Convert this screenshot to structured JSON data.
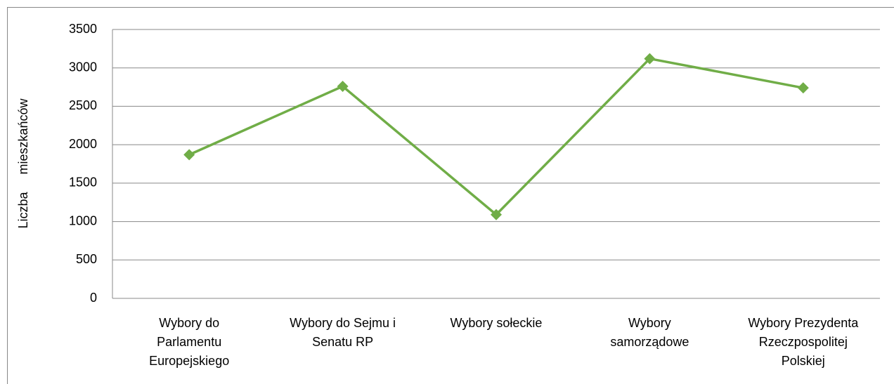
{
  "chart_data": {
    "type": "line",
    "y_label": "Liczba mieszkańców",
    "categories": [
      "Wybory do Parlamentu Europejskiego",
      "Wybory do Sejmu i Senatu RP",
      "Wybory sołeckie",
      "Wybory samorządowe",
      "Wybory Prezydenta Rzeczpospolitej Polskiej"
    ],
    "series": [
      {
        "name": "Liczba mieszkańców",
        "color": "#70ad47",
        "values": [
          1870,
          2760,
          1090,
          3120,
          2740
        ]
      }
    ],
    "ylim": [
      0,
      3500
    ],
    "yticks": [
      0,
      500,
      1000,
      1500,
      2000,
      2500,
      3000,
      3500
    ],
    "grid": true,
    "legend": false
  }
}
